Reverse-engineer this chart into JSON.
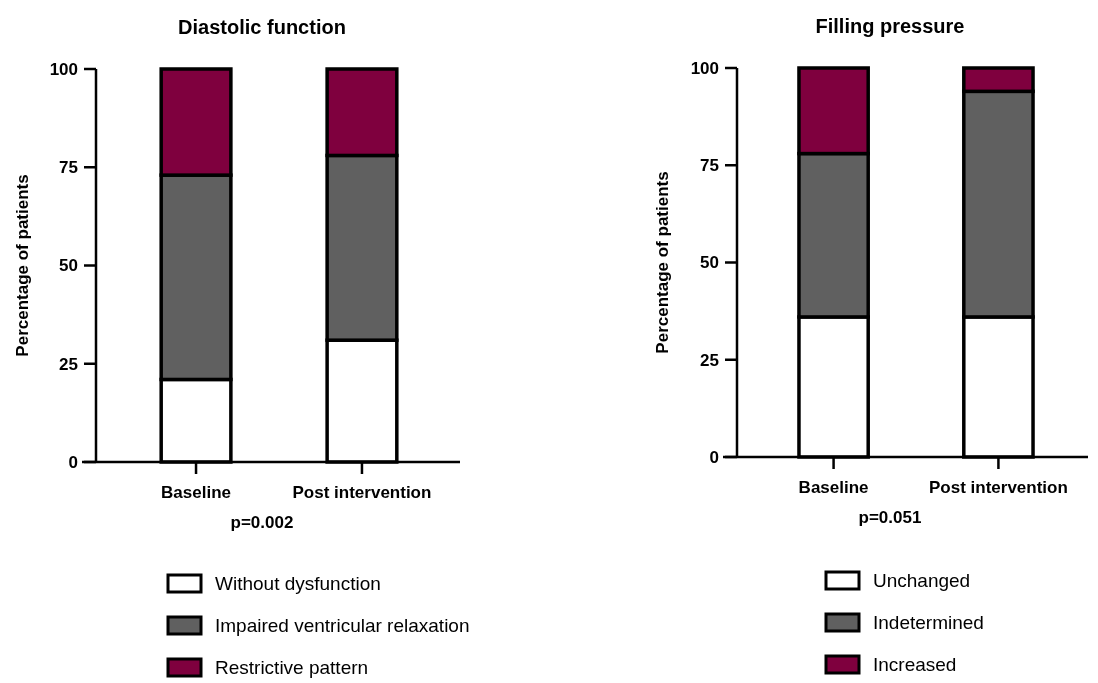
{
  "chart_data": [
    {
      "type": "bar",
      "title": "Diastolic function",
      "ylabel": "Percentage of patients",
      "categories": [
        "Baseline",
        "Post intervention"
      ],
      "stacked": true,
      "series": [
        {
          "name": "Without dysfunction",
          "color": "#ffffff",
          "values": [
            21,
            31
          ]
        },
        {
          "name": "Impaired ventricular relaxation",
          "color": "#606060",
          "values": [
            52,
            47
          ]
        },
        {
          "name": "Restrictive pattern",
          "color": "#7f003e",
          "values": [
            27,
            22
          ]
        }
      ],
      "ylim": [
        0,
        100
      ],
      "yticks": [
        0,
        25,
        50,
        75,
        100
      ],
      "grid": false,
      "legend": "bottom",
      "annotations": [
        "p=0.002"
      ]
    },
    {
      "type": "bar",
      "title": "Filling pressure",
      "ylabel": "Percentage of patients",
      "categories": [
        "Baseline",
        "Post intervention"
      ],
      "stacked": true,
      "series": [
        {
          "name": "Unchanged",
          "color": "#ffffff",
          "values": [
            36,
            36
          ]
        },
        {
          "name": "Indetermined",
          "color": "#606060",
          "values": [
            42,
            58
          ]
        },
        {
          "name": "Increased",
          "color": "#7f003e",
          "values": [
            22,
            6
          ]
        }
      ],
      "ylim": [
        0,
        100
      ],
      "yticks": [
        0,
        25,
        50,
        75,
        100
      ],
      "grid": false,
      "legend": "bottom",
      "annotations": [
        "p=0.051"
      ]
    }
  ]
}
